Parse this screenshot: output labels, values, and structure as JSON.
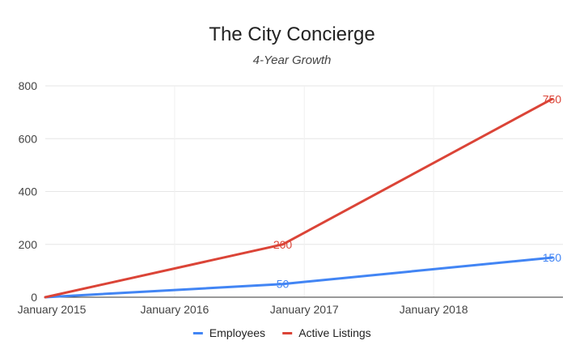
{
  "chart_data": {
    "type": "line",
    "title": "The City Concierge",
    "subtitle": "4-Year Growth",
    "x_tick_labels": [
      "January 2015",
      "January 2016",
      "January 2017",
      "January 2018"
    ],
    "x_ticks": [
      "2015-01-01",
      "2016-01-01",
      "2017-01-01",
      "2018-01-01"
    ],
    "xlim": [
      "2015-01-01",
      "2019-01-01"
    ],
    "ylim": [
      0,
      800
    ],
    "y_ticks": [
      0,
      200,
      400,
      600,
      800
    ],
    "grid": true,
    "legend_position": "bottom",
    "series": [
      {
        "name": "Employees",
        "color": "#4285f4",
        "points": [
          {
            "x": "2015-01-01",
            "y": 0,
            "label": ""
          },
          {
            "x": "2016-11-01",
            "y": 50,
            "label": "50"
          },
          {
            "x": "2018-12-01",
            "y": 150,
            "label": "150"
          }
        ]
      },
      {
        "name": "Active Listings",
        "color": "#db4437",
        "points": [
          {
            "x": "2015-01-01",
            "y": 0,
            "label": ""
          },
          {
            "x": "2016-11-01",
            "y": 200,
            "label": "200"
          },
          {
            "x": "2018-12-01",
            "y": 750,
            "label": "750"
          }
        ]
      }
    ]
  }
}
